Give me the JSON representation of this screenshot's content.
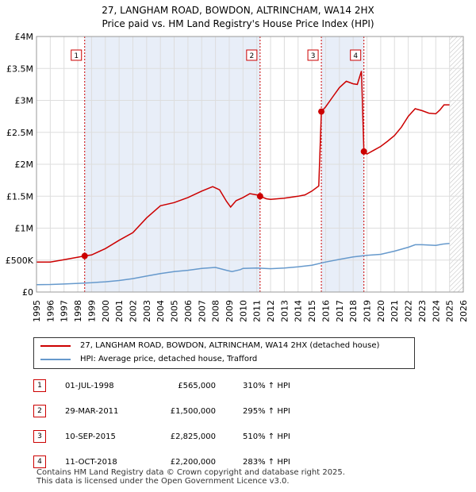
{
  "title_line1": "27, LANGHAM ROAD, BOWDON, ALTRINCHAM, WA14 2HX",
  "title_line2": "Price paid vs. HM Land Registry's House Price Index (HPI)",
  "colors": {
    "price": "#cc0000",
    "hpi": "#6699cc",
    "band": "#e8eef8"
  },
  "chart_data": {
    "type": "line",
    "x_ticks": [
      "1995",
      "1996",
      "1997",
      "1998",
      "1999",
      "2000",
      "2001",
      "2002",
      "2003",
      "2004",
      "2005",
      "2006",
      "2007",
      "2008",
      "2009",
      "2010",
      "2011",
      "2012",
      "2013",
      "2014",
      "2015",
      "2016",
      "2017",
      "2018",
      "2019",
      "2020",
      "2021",
      "2022",
      "2023",
      "2024",
      "2025",
      "2026"
    ],
    "y_ticks": [
      {
        "label": "£0",
        "value": 0
      },
      {
        "label": "£500K",
        "value": 500000
      },
      {
        "label": "£1M",
        "value": 1000000
      },
      {
        "label": "£1.5M",
        "value": 1500000
      },
      {
        "label": "£2M",
        "value": 2000000
      },
      {
        "label": "£2.5M",
        "value": 2500000
      },
      {
        "label": "£3M",
        "value": 3000000
      },
      {
        "label": "£3.5M",
        "value": 3500000
      },
      {
        "label": "£4M",
        "value": 4000000
      }
    ],
    "xlim": [
      1995,
      2026
    ],
    "ylim": [
      0,
      4000000
    ],
    "series": [
      {
        "name": "27, LANGHAM ROAD, BOWDON, ALTRINCHAM, WA14 2HX (detached house)",
        "points": [
          [
            1995,
            470000
          ],
          [
            1996,
            468000
          ],
          [
            1997,
            505000
          ],
          [
            1998,
            545000
          ],
          [
            1998.5,
            565000
          ],
          [
            1999,
            580000
          ],
          [
            2000,
            680000
          ],
          [
            2001,
            810000
          ],
          [
            2002,
            930000
          ],
          [
            2003,
            1160000
          ],
          [
            2004,
            1350000
          ],
          [
            2005,
            1400000
          ],
          [
            2006,
            1480000
          ],
          [
            2007,
            1580000
          ],
          [
            2007.8,
            1650000
          ],
          [
            2008.3,
            1600000
          ],
          [
            2008.8,
            1420000
          ],
          [
            2009.1,
            1330000
          ],
          [
            2009.5,
            1430000
          ],
          [
            2010,
            1480000
          ],
          [
            2010.5,
            1540000
          ],
          [
            2011,
            1520000
          ],
          [
            2011.24,
            1500000
          ],
          [
            2011.7,
            1460000
          ],
          [
            2012,
            1450000
          ],
          [
            2013,
            1470000
          ],
          [
            2014,
            1500000
          ],
          [
            2014.5,
            1520000
          ],
          [
            2015,
            1580000
          ],
          [
            2015.5,
            1660000
          ],
          [
            2015.69,
            2825000
          ],
          [
            2016,
            2900000
          ],
          [
            2016.5,
            3050000
          ],
          [
            2017,
            3200000
          ],
          [
            2017.5,
            3300000
          ],
          [
            2018,
            3260000
          ],
          [
            2018.3,
            3250000
          ],
          [
            2018.6,
            3460000
          ],
          [
            2018.78,
            2200000
          ],
          [
            2019,
            2160000
          ],
          [
            2019.5,
            2220000
          ],
          [
            2020,
            2280000
          ],
          [
            2020.5,
            2360000
          ],
          [
            2021,
            2450000
          ],
          [
            2021.5,
            2580000
          ],
          [
            2022,
            2750000
          ],
          [
            2022.5,
            2870000
          ],
          [
            2023,
            2840000
          ],
          [
            2023.5,
            2800000
          ],
          [
            2024,
            2790000
          ],
          [
            2024.3,
            2850000
          ],
          [
            2024.6,
            2930000
          ],
          [
            2025,
            2930000
          ]
        ]
      },
      {
        "name": "HPI: Average price, detached house, Trafford",
        "points": [
          [
            1995,
            115000
          ],
          [
            1996,
            118000
          ],
          [
            1997,
            125000
          ],
          [
            1998,
            135000
          ],
          [
            1999,
            145000
          ],
          [
            2000,
            160000
          ],
          [
            2001,
            180000
          ],
          [
            2002,
            210000
          ],
          [
            2003,
            250000
          ],
          [
            2004,
            290000
          ],
          [
            2005,
            320000
          ],
          [
            2006,
            340000
          ],
          [
            2007,
            370000
          ],
          [
            2008,
            385000
          ],
          [
            2008.8,
            340000
          ],
          [
            2009.2,
            320000
          ],
          [
            2009.8,
            350000
          ],
          [
            2010,
            370000
          ],
          [
            2011,
            375000
          ],
          [
            2012,
            365000
          ],
          [
            2013,
            375000
          ],
          [
            2014,
            395000
          ],
          [
            2015,
            420000
          ],
          [
            2016,
            470000
          ],
          [
            2017,
            510000
          ],
          [
            2018,
            550000
          ],
          [
            2019,
            575000
          ],
          [
            2020,
            590000
          ],
          [
            2021,
            640000
          ],
          [
            2022,
            700000
          ],
          [
            2022.5,
            740000
          ],
          [
            2023,
            740000
          ],
          [
            2024,
            730000
          ],
          [
            2024.5,
            750000
          ],
          [
            2025,
            760000
          ]
        ]
      }
    ],
    "sales": [
      {
        "num": "1",
        "x": 1998.5,
        "value": 565000
      },
      {
        "num": "2",
        "x": 2011.24,
        "value": 1500000
      },
      {
        "num": "3",
        "x": 2015.69,
        "value": 2825000
      },
      {
        "num": "4",
        "x": 2018.78,
        "value": 2200000
      }
    ],
    "shaded_spans": [
      [
        1998.5,
        2011.24
      ],
      [
        2015.69,
        2018.78
      ]
    ],
    "hatch_from": 2025
  },
  "legend": {
    "price_label": "27, LANGHAM ROAD, BOWDON, ALTRINCHAM, WA14 2HX (detached house)",
    "hpi_label": "HPI: Average price, detached house, Trafford"
  },
  "transactions": [
    {
      "num": "1",
      "date": "01-JUL-1998",
      "price": "£565,000",
      "hpi": "310% ↑ HPI"
    },
    {
      "num": "2",
      "date": "29-MAR-2011",
      "price": "£1,500,000",
      "hpi": "295% ↑ HPI"
    },
    {
      "num": "3",
      "date": "10-SEP-2015",
      "price": "£2,825,000",
      "hpi": "510% ↑ HPI"
    },
    {
      "num": "4",
      "date": "11-OCT-2018",
      "price": "£2,200,000",
      "hpi": "283% ↑ HPI"
    }
  ],
  "footer_line1": "Contains HM Land Registry data © Crown copyright and database right 2025.",
  "footer_line2": "This data is licensed under the Open Government Licence v3.0."
}
